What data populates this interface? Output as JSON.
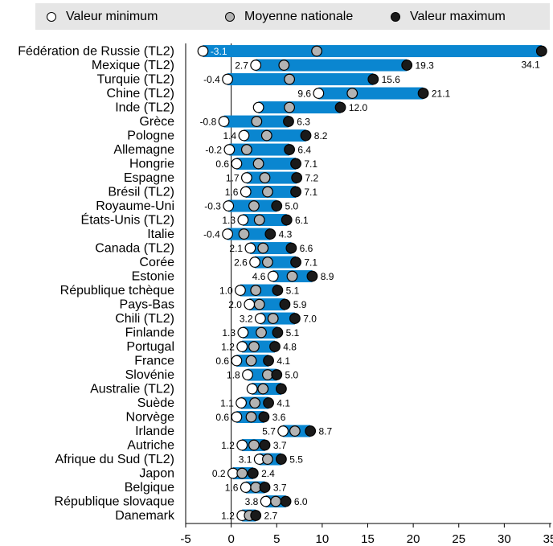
{
  "legend": {
    "min_label": "Valeur minimum",
    "avg_label": "Moyenne nationale",
    "max_label": "Valeur maximum"
  },
  "colors": {
    "bar": "#0a86d0",
    "min_marker": "#ffffff",
    "avg_marker": "#b3b3b3",
    "max_marker": "#1a1a1a",
    "legend_bg": "#e6e6e6"
  },
  "chart_data": {
    "type": "bar",
    "orientation": "horizontal-range",
    "xlim": [
      -5,
      35
    ],
    "x_ticks": [
      "-5",
      "0",
      "5",
      "10",
      "15",
      "20",
      "25",
      "30",
      "35"
    ],
    "categories": [
      "Fédération de Russie (TL2)",
      "Mexique (TL2)",
      "Turquie (TL2)",
      "Chine (TL2)",
      "Inde (TL2)",
      "Grèce",
      "Pologne",
      "Allemagne",
      "Hongrie",
      "Espagne",
      "Brésil (TL2)",
      "Royaume-Uni",
      "États-Unis (TL2)",
      "Italie",
      "Canada (TL2)",
      "Corée",
      "Estonie",
      "République tchèque",
      "Pays-Bas",
      "Chili (TL2)",
      "Finlande",
      "Portugal",
      "France",
      "Slovénie",
      "Australie (TL2)",
      "Suède",
      "Norvège",
      "Irlande",
      "Autriche",
      "Afrique du Sud (TL2)",
      "Japon",
      "Belgique",
      "République slovaque",
      "Danemark"
    ],
    "series": [
      {
        "name": "Valeur minimum",
        "values": [
          -3.1,
          2.7,
          -0.4,
          9.6,
          3.0,
          -0.8,
          1.4,
          -0.2,
          0.6,
          1.7,
          1.6,
          -0.3,
          1.3,
          -0.4,
          2.1,
          2.6,
          4.6,
          1.0,
          2.0,
          3.2,
          1.3,
          1.2,
          0.6,
          1.8,
          2.3,
          1.1,
          0.6,
          5.7,
          1.2,
          3.1,
          0.2,
          1.6,
          3.8,
          1.2
        ]
      },
      {
        "name": "Moyenne nationale",
        "values": [
          9.4,
          5.8,
          6.4,
          13.3,
          6.4,
          2.8,
          3.9,
          1.7,
          3.0,
          3.7,
          4.0,
          2.5,
          3.1,
          1.4,
          3.5,
          4.0,
          6.7,
          2.7,
          3.1,
          4.6,
          3.3,
          2.5,
          2.2,
          4.0,
          3.5,
          2.6,
          2.2,
          7.0,
          2.5,
          4.0,
          1.2,
          2.7,
          4.9,
          2.0
        ]
      },
      {
        "name": "Valeur maximum",
        "values": [
          34.1,
          19.3,
          15.6,
          21.1,
          12.0,
          6.3,
          8.2,
          6.4,
          7.1,
          7.2,
          7.1,
          5.0,
          6.1,
          4.3,
          6.6,
          7.1,
          8.9,
          5.1,
          5.9,
          7.0,
          5.1,
          4.8,
          4.1,
          5.0,
          5.5,
          4.1,
          3.6,
          8.7,
          3.7,
          5.5,
          2.4,
          3.7,
          6.0,
          2.7
        ]
      }
    ],
    "min_labels": [
      "-3.1",
      "2.7",
      "-0.4",
      "9.6",
      "",
      "-0.8",
      "1.4",
      "-0.2",
      "0.6",
      "1.7",
      "1.6",
      "-0.3",
      "1.3",
      "-0.4",
      "2.1",
      "2.6",
      "4.6",
      "1.0",
      "2.0",
      "3.2",
      "1.3",
      "1.2",
      "0.6",
      "1.8",
      "",
      "1.1",
      "0.6",
      "5.7",
      "1.2",
      "3.1",
      "0.2",
      "1.6",
      "3.8",
      "1.2"
    ],
    "max_labels": [
      "34.1",
      "19.3",
      "15.6",
      "21.1",
      "12.0",
      "6.3",
      "8.2",
      "6.4",
      "7.1",
      "7.2",
      "7.1",
      "5.0",
      "6.1",
      "4.3",
      "6.6",
      "7.1",
      "8.9",
      "5.1",
      "5.9",
      "7.0",
      "5.1",
      "4.8",
      "4.1",
      "5.0",
      "",
      "4.1",
      "3.6",
      "8.7",
      "3.7",
      "5.5",
      "2.4",
      "3.7",
      "6.0",
      "2.7"
    ],
    "legend_position": "top",
    "grid": false
  }
}
